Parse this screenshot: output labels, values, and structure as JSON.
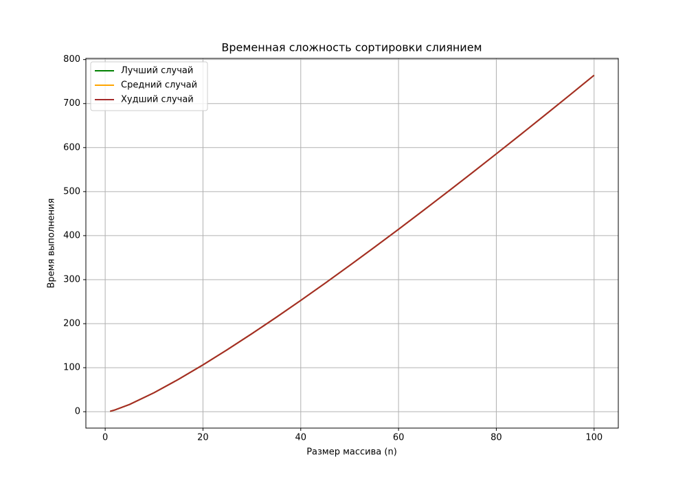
{
  "chart_data": {
    "type": "line",
    "title": "Временная сложность сортировки слиянием",
    "xlabel": "Размер массива (n)",
    "ylabel": "Время выполнения",
    "x": [
      1,
      2,
      5,
      10,
      15,
      20,
      25,
      30,
      35,
      40,
      45,
      50,
      55,
      60,
      65,
      70,
      75,
      80,
      85,
      90,
      95,
      100
    ],
    "series": [
      {
        "name": "Лучший случай",
        "color": "#008000",
        "values": [
          1,
          4,
          16.6,
          43.2,
          73.6,
          106.4,
          141.1,
          177.2,
          214.5,
          252.9,
          292.1,
          332.2,
          373.0,
          414.4,
          456.5,
          499.1,
          542.2,
          585.8,
          629.8,
          674.3,
          719.1,
          764.4
        ]
      },
      {
        "name": "Средний случай",
        "color": "#ffa500",
        "values": [
          1,
          4,
          16.6,
          43.2,
          73.6,
          106.4,
          141.1,
          177.2,
          214.5,
          252.9,
          292.1,
          332.2,
          373.0,
          414.4,
          456.5,
          499.1,
          542.2,
          585.8,
          629.8,
          674.3,
          719.1,
          764.4
        ]
      },
      {
        "name": "Худший случай",
        "color": "#a52a2a",
        "values": [
          1,
          4,
          16.6,
          43.2,
          73.6,
          106.4,
          141.1,
          177.2,
          214.5,
          252.9,
          292.1,
          332.2,
          373.0,
          414.4,
          456.5,
          499.1,
          542.2,
          585.8,
          629.8,
          674.3,
          719.1,
          764.4
        ]
      }
    ],
    "xlim": [
      -3.95,
      104.95
    ],
    "ylim": [
      -37.2,
      802.6
    ],
    "xticks": [
      0,
      20,
      40,
      60,
      80,
      100
    ],
    "yticks": [
      0,
      100,
      200,
      300,
      400,
      500,
      600,
      700,
      800
    ],
    "grid": true,
    "legend": "upper-left"
  }
}
